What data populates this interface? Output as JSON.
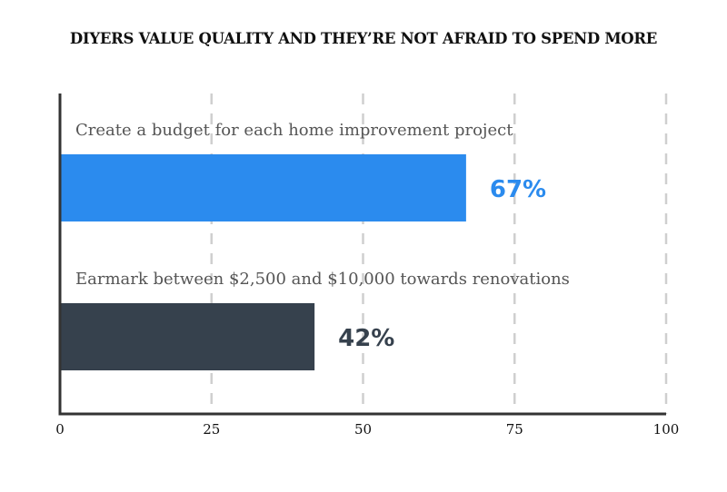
{
  "chart_data": {
    "type": "bar",
    "orientation": "horizontal",
    "title": "DIYERS VALUE QUALITY AND THEY’RE NOT AFRAID TO SPEND MORE",
    "categories": [
      "Create a budget for each home improvement project",
      "Earmark between $2,500 and $10,000 towards renovations"
    ],
    "values": [
      67,
      42
    ],
    "value_labels": [
      "67%",
      "42%"
    ],
    "colors": [
      "#2b8bee",
      "#36414d"
    ],
    "xlim": [
      0,
      100
    ],
    "xticks": [
      0,
      25,
      50,
      75,
      100
    ],
    "xtick_labels": [
      "0",
      "25",
      "50",
      "75",
      "100"
    ],
    "grid": "vertical dashed"
  }
}
